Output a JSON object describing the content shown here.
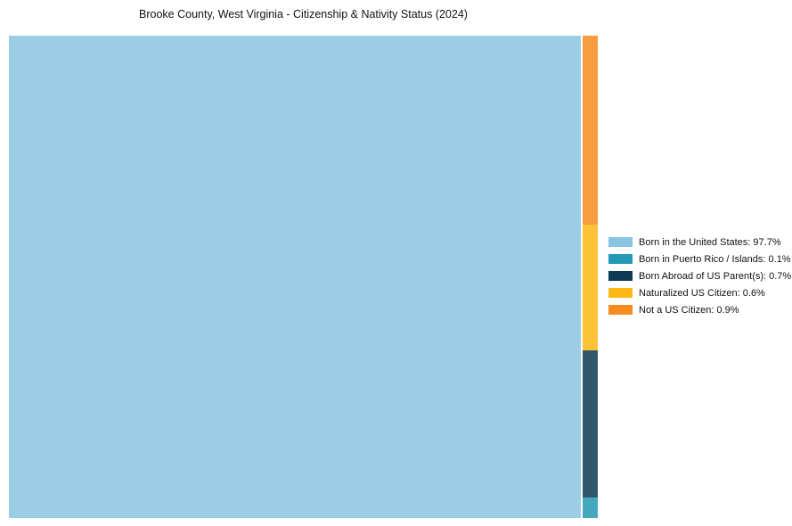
{
  "title": "Brooke County, West Virginia - Citizenship & Nativity Status (2024)",
  "chart_data": {
    "type": "treemap",
    "title": "Brooke County, West Virginia - Citizenship & Nativity Status (2024)",
    "categories": [
      "Born in the United States",
      "Born in Puerto Rico / Islands",
      "Born Abroad of US Parent(s)",
      "Naturalized US Citizen",
      "Not a US Citizen"
    ],
    "values": [
      97.7,
      0.1,
      0.7,
      0.6,
      0.9
    ],
    "unit": "%",
    "colors": [
      "#89c5e0",
      "#2499b4",
      "#0d3a53",
      "#fdb813",
      "#f68b1f"
    ],
    "legend_position": "right",
    "legend_labels": [
      "Born in the United States: 97.7%",
      "Born in Puerto Rico / Islands: 0.1%",
      "Born Abroad of US Parent(s): 0.7%",
      "Naturalized US Citizen: 0.6%",
      "Not a US Citizen: 0.9%"
    ],
    "background_color": "#ffffff",
    "title_color": "#111111"
  }
}
